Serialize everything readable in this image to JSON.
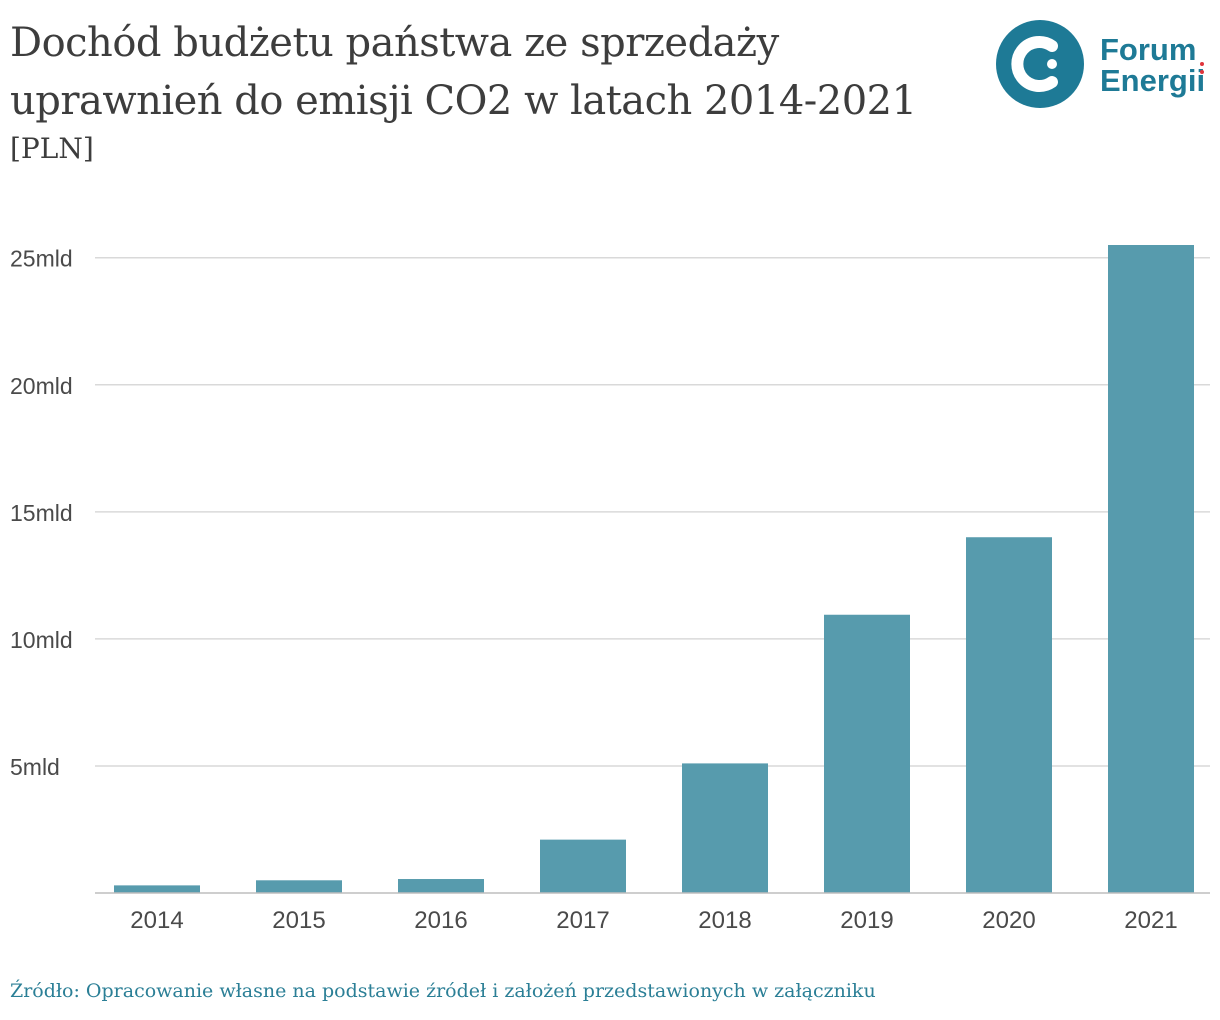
{
  "header": {
    "title_line1": "Dochód budżetu państwa ze sprzedaży",
    "title_line2": "uprawnień do emisji CO2 w latach 2014-2021",
    "unit": "[PLN]"
  },
  "logo": {
    "line1": "Forum",
    "line2": "Energii",
    "icon": "forum-energii-logo-icon",
    "brand_color": "#1e7a96",
    "dot_color": "#e0343c"
  },
  "footer": {
    "source": "Źródło: Opracowanie własne na podstawie źródeł i założeń przedstawionych w załączniku"
  },
  "chart_data": {
    "type": "bar",
    "title": "Dochód budżetu państwa ze sprzedaży uprawnień do emisji CO2 w latach 2014-2021",
    "ylabel": "[PLN]",
    "xlabel": "",
    "categories": [
      "2014",
      "2015",
      "2016",
      "2017",
      "2018",
      "2019",
      "2020",
      "2021"
    ],
    "values": [
      0.3,
      0.5,
      0.55,
      2.1,
      5.1,
      10.95,
      14.0,
      25.5
    ],
    "value_unit": "mld",
    "ylim": [
      0,
      25.5
    ],
    "yticks": [
      5,
      10,
      15,
      20,
      25
    ],
    "ytick_labels": [
      "5mld",
      "10mld",
      "15mld",
      "20mld",
      "25mld"
    ],
    "grid": true,
    "bar_color": "#579bad"
  }
}
